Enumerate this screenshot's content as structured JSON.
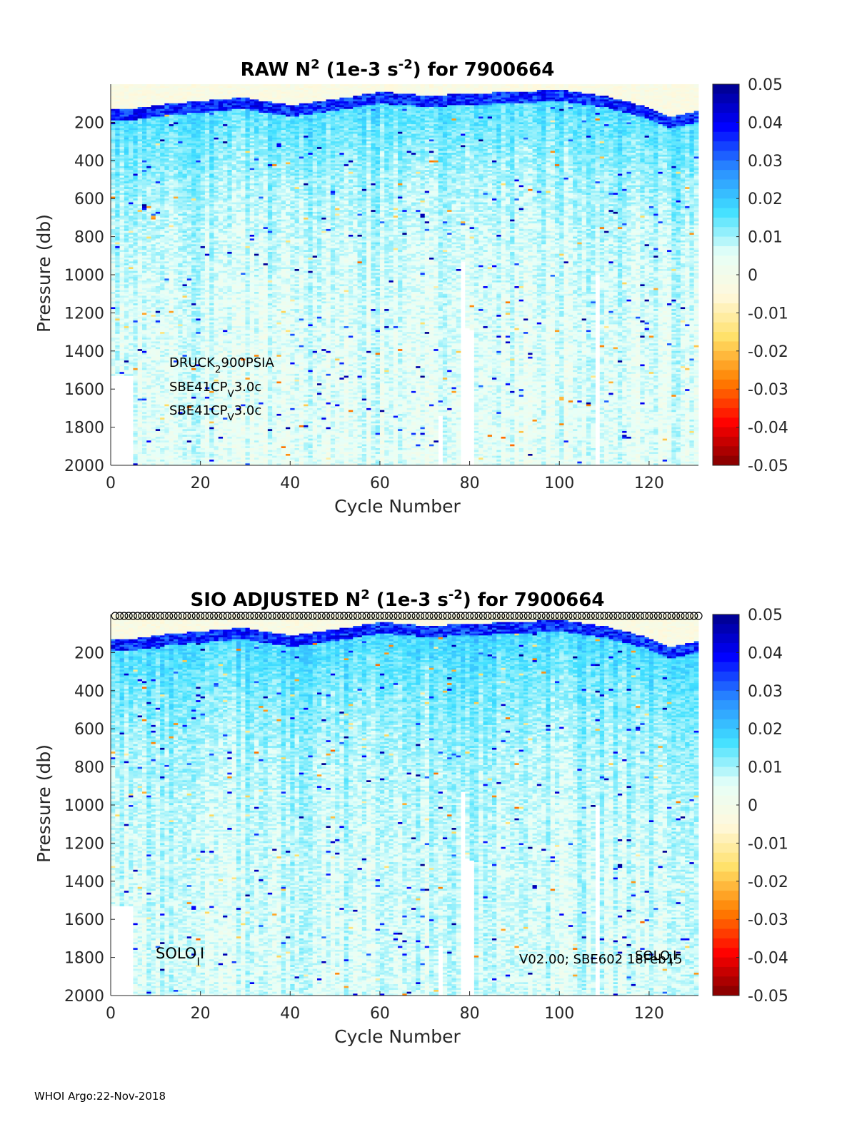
{
  "footer": "WHOI Argo:22-Nov-2018",
  "colormap": [
    "#800000",
    "#ff0000",
    "#ff8000",
    "#ffe066",
    "#fff8dc",
    "#e6fff8",
    "#40e0ff",
    "#2a8cff",
    "#0000ff",
    "#00008b"
  ],
  "chart_data": [
    {
      "type": "heatmap",
      "title_parts": [
        "RAW N",
        "2",
        " (1e-3 s",
        "-2",
        ") for 7900664"
      ],
      "xlabel": "Cycle Number",
      "ylabel": "Pressure (db)",
      "xlim": [
        0,
        131
      ],
      "ylim": [
        2000,
        0
      ],
      "xticks": [
        "0",
        "20",
        "40",
        "60",
        "80",
        "100",
        "120"
      ],
      "yticks": [
        "200",
        "400",
        "600",
        "800",
        "1000",
        "1200",
        "1400",
        "1600",
        "1800",
        "2000"
      ],
      "colorbar": {
        "range": [
          -0.05,
          0.05
        ],
        "ticks": [
          "0.05",
          "0.04",
          "0.03",
          "0.02",
          "0.01",
          "0",
          "-0.01",
          "-0.02",
          "-0.03",
          "-0.04",
          "-0.05"
        ]
      },
      "annotations": [
        {
          "text": [
            "DRUCK",
            "2",
            "900PSIA"
          ]
        },
        {
          "text": [
            "SBE41CP",
            "V",
            "3.0c"
          ]
        },
        {
          "text": [
            "SBE41CP",
            "V",
            "3.0c"
          ]
        }
      ],
      "markers_top": false,
      "field_summary": {
        "thermocline_depth_db": [
          [
            0,
            160
          ],
          [
            5,
            160
          ],
          [
            10,
            140
          ],
          [
            20,
            120
          ],
          [
            30,
            100
          ],
          [
            34,
            120
          ],
          [
            40,
            140
          ],
          [
            50,
            110
          ],
          [
            60,
            70
          ],
          [
            70,
            90
          ],
          [
            80,
            80
          ],
          [
            90,
            70
          ],
          [
            100,
            60
          ],
          [
            110,
            90
          ],
          [
            118,
            140
          ],
          [
            125,
            200
          ],
          [
            131,
            170
          ]
        ],
        "thermocline_strength": 0.04,
        "background_value": 0.005,
        "surface_value": -0.003,
        "cycles": 131
      }
    },
    {
      "type": "heatmap",
      "title_parts": [
        "SIO  ADJUSTED N",
        "2",
        " (1e-3 s",
        "-2",
        ") for 7900664"
      ],
      "xlabel": "Cycle Number",
      "ylabel": "Pressure (db)",
      "xlim": [
        0,
        131
      ],
      "ylim": [
        2000,
        0
      ],
      "xticks": [
        "0",
        "20",
        "40",
        "60",
        "80",
        "100",
        "120"
      ],
      "yticks": [
        "200",
        "400",
        "600",
        "800",
        "1000",
        "1200",
        "1400",
        "1600",
        "1800",
        "2000"
      ],
      "colorbar": {
        "range": [
          -0.05,
          0.05
        ],
        "ticks": [
          "0.05",
          "0.04",
          "0.03",
          "0.02",
          "0.01",
          "0",
          "-0.01",
          "-0.02",
          "-0.03",
          "-0.04",
          "-0.05"
        ]
      },
      "annotations": [
        {
          "text": [
            "SOLO",
            "I",
            "I"
          ]
        },
        {
          "text": [
            "V02.00; SBE602 18Feb15"
          ]
        },
        {
          "text": [
            "SOLO",
            "I",
            "I"
          ]
        }
      ],
      "markers_top": true,
      "field_summary": {
        "thermocline_depth_db": [
          [
            0,
            160
          ],
          [
            5,
            160
          ],
          [
            10,
            140
          ],
          [
            20,
            120
          ],
          [
            30,
            100
          ],
          [
            34,
            120
          ],
          [
            40,
            140
          ],
          [
            50,
            110
          ],
          [
            60,
            70
          ],
          [
            70,
            90
          ],
          [
            80,
            80
          ],
          [
            90,
            70
          ],
          [
            100,
            60
          ],
          [
            110,
            90
          ],
          [
            118,
            140
          ],
          [
            125,
            200
          ],
          [
            131,
            170
          ]
        ],
        "thermocline_strength": 0.04,
        "background_value": 0.006,
        "surface_value": -0.003,
        "cycles": 131
      }
    }
  ]
}
